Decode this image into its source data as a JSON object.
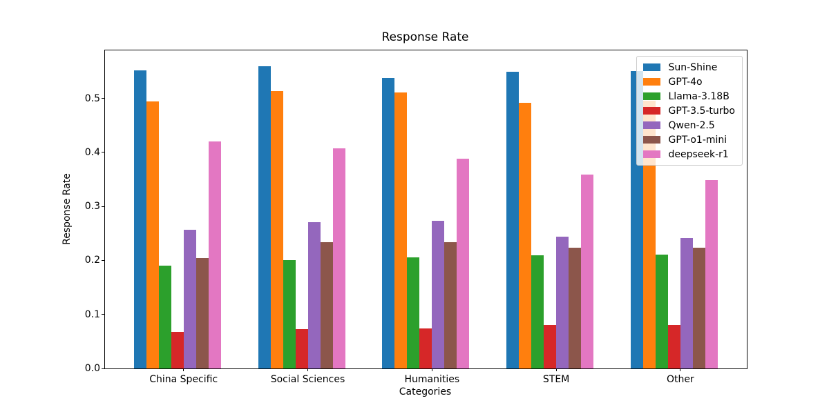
{
  "chart_data": {
    "type": "bar",
    "title": "Response Rate",
    "xlabel": "Categories",
    "ylabel": "Response Rate",
    "categories": [
      "China Specific",
      "Social Sciences",
      "Humanities",
      "STEM",
      "Other"
    ],
    "series": [
      {
        "name": "Sun-Shine",
        "color": "#1f77b4",
        "values": [
          0.552,
          0.559,
          0.538,
          0.55,
          0.551
        ]
      },
      {
        "name": "GPT-4o",
        "color": "#ff7f0e",
        "values": [
          0.494,
          0.514,
          0.511,
          0.492,
          0.496
        ]
      },
      {
        "name": "Llama-3.18B",
        "color": "#2ca02c",
        "values": [
          0.191,
          0.2,
          0.206,
          0.209,
          0.211
        ]
      },
      {
        "name": "GPT-3.5-turbo",
        "color": "#d62728",
        "values": [
          0.068,
          0.073,
          0.074,
          0.08,
          0.08
        ]
      },
      {
        "name": "Qwen-2.5",
        "color": "#9467bd",
        "values": [
          0.257,
          0.271,
          0.274,
          0.244,
          0.242
        ]
      },
      {
        "name": "GPT-o1-mini",
        "color": "#8c564b",
        "values": [
          0.205,
          0.234,
          0.234,
          0.223,
          0.224
        ]
      },
      {
        "name": "deepseek-r1",
        "color": "#e377c2",
        "values": [
          0.421,
          0.407,
          0.389,
          0.359,
          0.349
        ]
      }
    ],
    "ylim": [
      0,
      0.589
    ],
    "ytick_labels": [
      "0.0",
      "0.1",
      "0.2",
      "0.3",
      "0.4",
      "0.5"
    ],
    "ytick_values": [
      0.0,
      0.1,
      0.2,
      0.3,
      0.4,
      0.5
    ],
    "legend_position": "upper right",
    "grid": false,
    "axis_color": "#000000",
    "legend_border_color": "#cccccc"
  }
}
